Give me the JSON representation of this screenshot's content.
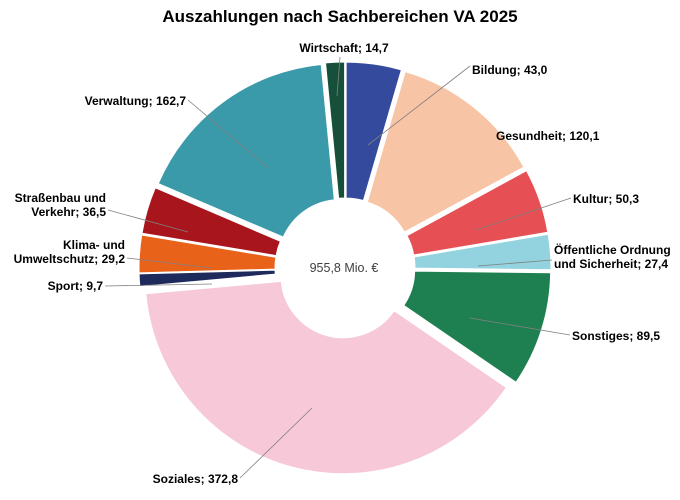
{
  "chart_data": {
    "type": "donut",
    "title": "Auszahlungen  nach  Sachbereichen  VA 2025",
    "center_label": "955,8 Mio. €",
    "legend": "none",
    "slices": [
      {
        "label_lines": [
          "Bildung;  43,0"
        ],
        "value": 43.0,
        "color": "#344a9c"
      },
      {
        "label_lines": [
          "Gesundheit;  120,1"
        ],
        "value": 120.1,
        "color": "#f7c4a5"
      },
      {
        "label_lines": [
          "Kultur;  50,3"
        ],
        "value": 50.3,
        "color": "#e65055"
      },
      {
        "label_lines": [
          "Öffentliche Ordnung",
          "und Sicherheit;  27,4"
        ],
        "value": 27.4,
        "color": "#92d3df"
      },
      {
        "label_lines": [
          "Sonstiges;  89,5"
        ],
        "value": 89.5,
        "color": "#1e8050"
      },
      {
        "label_lines": [
          "Soziales;  372,8"
        ],
        "value": 372.8,
        "color": "#f6c8d8"
      },
      {
        "label_lines": [
          "Sport;  9,7"
        ],
        "value": 9.7,
        "color": "#1f2a5c"
      },
      {
        "label_lines": [
          "Klima-  und",
          "Umweltschutz;  29,2"
        ],
        "value": 29.2,
        "color": "#e8621a"
      },
      {
        "label_lines": [
          "Straßenbau und",
          "Verkehr;  36,5"
        ],
        "value": 36.5,
        "color": "#a8151d"
      },
      {
        "label_lines": [
          "Verwaltung;  162,7"
        ],
        "value": 162.7,
        "color": "#3a9aaa"
      },
      {
        "label_lines": [
          "Wirtschaft;  14,7"
        ],
        "value": 14.7,
        "color": "#17503a"
      }
    ]
  }
}
